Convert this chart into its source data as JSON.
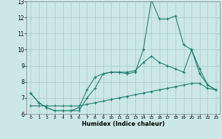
{
  "title": "",
  "xlabel": "Humidex (Indice chaleur)",
  "bg_color": "#cce8e6",
  "grid_color": "#aaccca",
  "line_color": "#1a7a6e",
  "xlim": [
    -0.5,
    23.5
  ],
  "ylim": [
    6,
    13
  ],
  "xticks": [
    0,
    1,
    2,
    3,
    4,
    5,
    6,
    7,
    8,
    9,
    10,
    11,
    12,
    13,
    14,
    15,
    16,
    17,
    18,
    19,
    20,
    21,
    22,
    23
  ],
  "yticks": [
    6,
    7,
    8,
    9,
    10,
    11,
    12,
    13
  ],
  "line1_x": [
    0,
    1,
    2,
    3,
    4,
    5,
    6,
    7,
    8,
    9,
    10,
    11,
    12,
    13,
    14,
    15,
    16,
    17,
    18,
    19,
    20,
    21,
    22,
    23
  ],
  "line1_y": [
    7.3,
    6.7,
    6.4,
    6.2,
    6.2,
    6.2,
    6.2,
    7.0,
    7.6,
    8.5,
    8.6,
    8.6,
    8.5,
    8.6,
    10.0,
    13.1,
    11.9,
    11.9,
    12.1,
    10.3,
    10.0,
    8.5,
    7.8,
    7.5
  ],
  "line2_x": [
    0,
    1,
    2,
    3,
    4,
    5,
    6,
    7,
    8,
    9,
    10,
    11,
    12,
    13,
    14,
    15,
    16,
    17,
    18,
    19,
    20,
    21,
    22,
    23
  ],
  "line2_y": [
    7.3,
    6.7,
    6.4,
    6.2,
    6.2,
    6.2,
    6.4,
    7.5,
    8.3,
    8.5,
    8.6,
    8.6,
    8.6,
    8.7,
    9.2,
    9.6,
    9.2,
    9.0,
    8.8,
    8.6,
    10.0,
    8.8,
    7.8,
    7.5
  ],
  "line3_x": [
    0,
    1,
    2,
    3,
    4,
    5,
    6,
    7,
    8,
    9,
    10,
    11,
    12,
    13,
    14,
    15,
    16,
    17,
    18,
    19,
    20,
    21,
    22,
    23
  ],
  "line3_y": [
    6.5,
    6.5,
    6.5,
    6.5,
    6.5,
    6.5,
    6.5,
    6.6,
    6.7,
    6.8,
    6.9,
    7.0,
    7.1,
    7.2,
    7.3,
    7.4,
    7.5,
    7.6,
    7.7,
    7.8,
    7.9,
    7.9,
    7.6,
    7.5
  ]
}
